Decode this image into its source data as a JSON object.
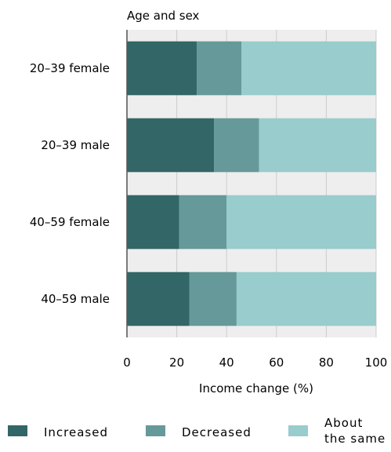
{
  "chart_data": {
    "type": "bar",
    "orientation": "horizontal",
    "stacked": true,
    "y_axis_title": "Age and sex",
    "xlabel": "Income change (%)",
    "categories": [
      "20–39 female",
      "20–39 male",
      "40–59 female",
      "40–59 male"
    ],
    "xlim": [
      0,
      100
    ],
    "x_ticks": [
      "0",
      "20",
      "40",
      "60",
      "80",
      "100"
    ],
    "grid": true,
    "legend_position": "bottom",
    "series": [
      {
        "name": "Increased",
        "color": "#336666",
        "values": [
          28,
          35,
          21,
          25
        ]
      },
      {
        "name": "Decreased",
        "color": "#669999",
        "values": [
          18,
          18,
          19,
          19
        ]
      },
      {
        "name": "About the same",
        "legend_lines": [
          "About",
          "the same"
        ],
        "color": "#99cccc",
        "values": [
          54,
          47,
          60,
          56
        ]
      }
    ]
  }
}
